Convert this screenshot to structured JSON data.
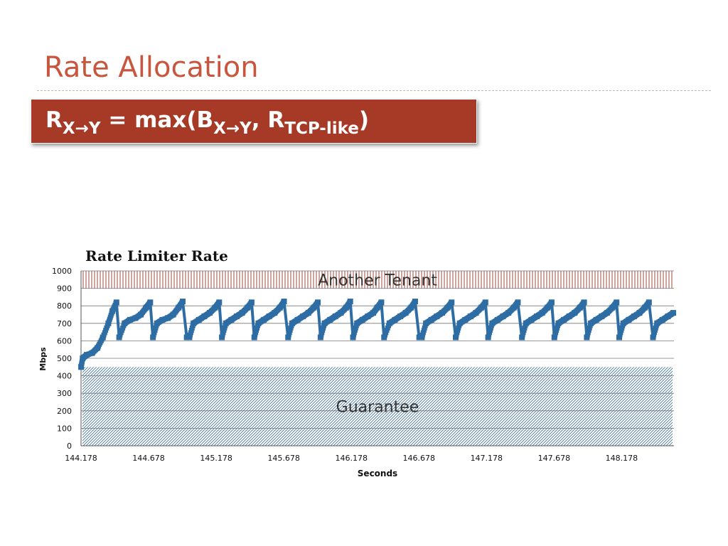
{
  "slide": {
    "title": "Rate Allocation",
    "formula": {
      "r": "R",
      "r_sub": "X→Y",
      "mid": " = max(B",
      "b_sub": "X→Y",
      "sep": ", R",
      "tcp_sub": "TCP-like",
      "close": ")"
    }
  },
  "colors": {
    "title": "#c8553d",
    "formula_bg": "#a63a26",
    "series": "#2e6da4",
    "tenant_hatch": "#a04a3c",
    "guarantee_hatch": "#3e6e8e"
  },
  "chart_data": {
    "type": "line",
    "title": "Rate Limiter Rate",
    "xlabel": "Seconds",
    "ylabel": "Mbps",
    "ylim": [
      0,
      1000
    ],
    "yticks": [
      "0",
      "100",
      "200",
      "300",
      "400",
      "500",
      "600",
      "700",
      "800",
      "900",
      "1000"
    ],
    "xlim": [
      144.178,
      148.565
    ],
    "xticks": [
      "144.178",
      "144.678",
      "145.178",
      "145.678",
      "146.178",
      "146.678",
      "147.178",
      "147.678",
      "148.178"
    ],
    "grid": "horizontal",
    "legend": "none",
    "regions": [
      {
        "label": "Another Tenant",
        "from": 900,
        "to": 1000
      },
      {
        "label": "Guarantee",
        "from": 0,
        "to": 450
      }
    ],
    "series": [
      {
        "markers": "square",
        "points": [
          [
            144.178,
            450
          ],
          [
            144.19,
            500
          ],
          [
            144.22,
            520
          ],
          [
            144.26,
            530
          ],
          [
            144.3,
            560
          ],
          [
            144.34,
            620
          ],
          [
            144.38,
            700
          ],
          [
            144.41,
            770
          ],
          [
            144.44,
            820
          ],
          [
            144.46,
            620
          ],
          [
            144.5,
            700
          ],
          [
            144.54,
            720
          ],
          [
            144.58,
            730
          ],
          [
            144.62,
            750
          ],
          [
            144.66,
            790
          ],
          [
            144.69,
            820
          ],
          [
            144.71,
            620
          ],
          [
            144.74,
            700
          ],
          [
            144.78,
            720
          ],
          [
            144.82,
            730
          ],
          [
            144.86,
            750
          ],
          [
            144.9,
            790
          ],
          [
            144.93,
            825
          ],
          [
            144.96,
            620
          ],
          [
            144.98,
            620
          ],
          [
            145.01,
            700
          ],
          [
            145.05,
            720
          ],
          [
            145.09,
            740
          ],
          [
            145.13,
            760
          ],
          [
            145.17,
            790
          ],
          [
            145.2,
            820
          ],
          [
            145.22,
            620
          ],
          [
            145.25,
            700
          ],
          [
            145.29,
            720
          ],
          [
            145.33,
            740
          ],
          [
            145.37,
            760
          ],
          [
            145.41,
            790
          ],
          [
            145.44,
            820
          ],
          [
            145.46,
            620
          ],
          [
            145.49,
            700
          ],
          [
            145.53,
            720
          ],
          [
            145.57,
            740
          ],
          [
            145.61,
            760
          ],
          [
            145.65,
            790
          ],
          [
            145.68,
            825
          ],
          [
            145.71,
            620
          ],
          [
            145.74,
            700
          ],
          [
            145.78,
            720
          ],
          [
            145.82,
            740
          ],
          [
            145.86,
            760
          ],
          [
            145.9,
            790
          ],
          [
            145.93,
            820
          ],
          [
            145.95,
            620
          ],
          [
            145.98,
            700
          ],
          [
            146.02,
            720
          ],
          [
            146.06,
            740
          ],
          [
            146.1,
            760
          ],
          [
            146.14,
            790
          ],
          [
            146.17,
            825
          ],
          [
            146.19,
            620
          ],
          [
            146.22,
            700
          ],
          [
            146.26,
            720
          ],
          [
            146.3,
            740
          ],
          [
            146.34,
            760
          ],
          [
            146.37,
            790
          ],
          [
            146.4,
            820
          ],
          [
            146.42,
            620
          ],
          [
            146.46,
            700
          ],
          [
            146.5,
            720
          ],
          [
            146.54,
            740
          ],
          [
            146.58,
            760
          ],
          [
            146.62,
            790
          ],
          [
            146.65,
            825
          ],
          [
            146.68,
            620
          ],
          [
            146.7,
            620
          ],
          [
            146.73,
            700
          ],
          [
            146.77,
            720
          ],
          [
            146.81,
            740
          ],
          [
            146.85,
            760
          ],
          [
            146.89,
            790
          ],
          [
            146.92,
            820
          ],
          [
            146.95,
            620
          ],
          [
            146.98,
            700
          ],
          [
            147.02,
            720
          ],
          [
            147.06,
            740
          ],
          [
            147.1,
            760
          ],
          [
            147.14,
            790
          ],
          [
            147.17,
            820
          ],
          [
            147.19,
            620
          ],
          [
            147.22,
            700
          ],
          [
            147.26,
            720
          ],
          [
            147.3,
            740
          ],
          [
            147.34,
            760
          ],
          [
            147.38,
            790
          ],
          [
            147.41,
            820
          ],
          [
            147.44,
            620
          ],
          [
            147.47,
            700
          ],
          [
            147.51,
            720
          ],
          [
            147.55,
            740
          ],
          [
            147.59,
            760
          ],
          [
            147.63,
            790
          ],
          [
            147.66,
            820
          ],
          [
            147.68,
            620
          ],
          [
            147.71,
            700
          ],
          [
            147.75,
            720
          ],
          [
            147.79,
            740
          ],
          [
            147.83,
            760
          ],
          [
            147.87,
            790
          ],
          [
            147.9,
            820
          ],
          [
            147.92,
            620
          ],
          [
            147.95,
            700
          ],
          [
            147.99,
            720
          ],
          [
            148.03,
            740
          ],
          [
            148.07,
            760
          ],
          [
            148.11,
            790
          ],
          [
            148.14,
            820
          ],
          [
            148.16,
            620
          ],
          [
            148.19,
            700
          ],
          [
            148.23,
            720
          ],
          [
            148.27,
            740
          ],
          [
            148.31,
            760
          ],
          [
            148.35,
            790
          ],
          [
            148.38,
            820
          ],
          [
            148.41,
            620
          ],
          [
            148.44,
            700
          ],
          [
            148.48,
            720
          ],
          [
            148.52,
            740
          ],
          [
            148.56,
            760
          ]
        ]
      }
    ]
  }
}
